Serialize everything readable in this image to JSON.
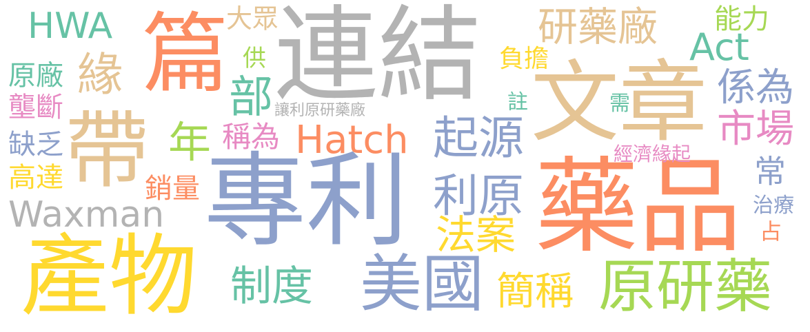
{
  "colors": {
    "green": "#66c2a5",
    "orange": "#fc8d62",
    "blue": "#8da0cb",
    "pink": "#e78ac3",
    "lime": "#a6d854",
    "yellow": "#ffd92f",
    "tan": "#e5c494",
    "gray": "#b3b3b3"
  },
  "words": {
    "w01": "連結",
    "w02": "專利",
    "w03": "藥品",
    "w04": "文章",
    "w05": "產物",
    "w06": "篇",
    "w07": "帶",
    "w08": "原研藥",
    "w09": "美國",
    "w10": "Hatch",
    "w11": "Waxman",
    "w12": "HWA",
    "w13": "Act",
    "w14": "研藥廠",
    "w15": "緣",
    "w16": "部",
    "w17": "起源",
    "w18": "利原",
    "w19": "法案",
    "w20": "制度",
    "w21": "簡稱",
    "w22": "年",
    "w23": "稱為",
    "w24": "係為",
    "w25": "市場",
    "w26": "原廠",
    "w27": "壟斷",
    "w28": "缺乏",
    "w29": "高達",
    "w30": "銷量",
    "w31": "大眾",
    "w32": "供",
    "w33": "負擔",
    "w34": "註",
    "w35": "需",
    "w36": "能力",
    "w37": "經濟緣起",
    "w38": "常",
    "w39": "治療",
    "w40": "占",
    "w41": "讓利原研藥廠"
  }
}
